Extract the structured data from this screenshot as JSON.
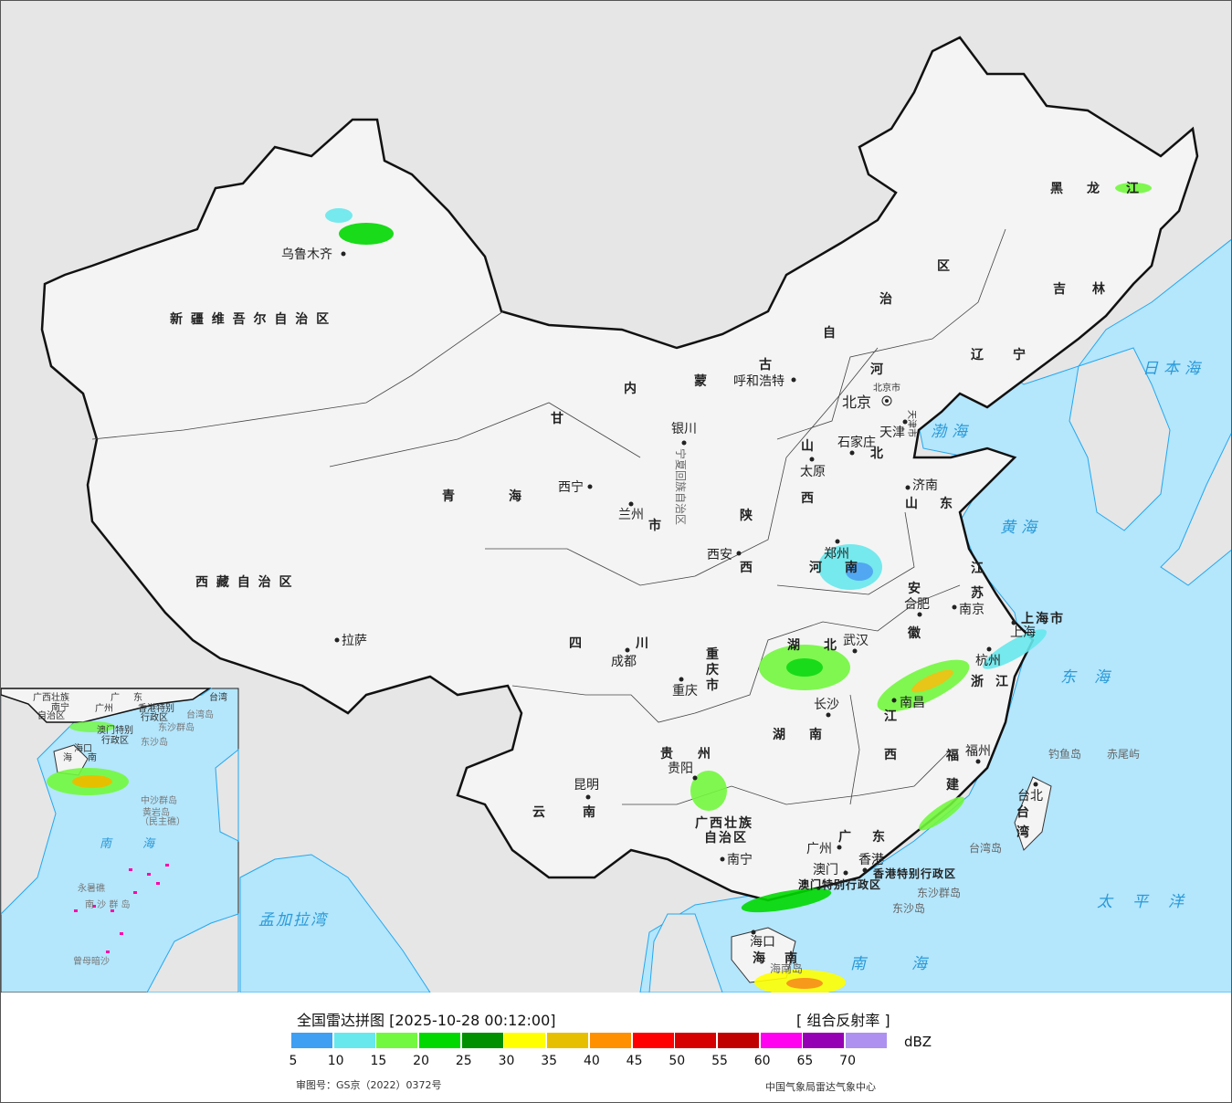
{
  "legend": {
    "title": "全国雷达拼图 [2025-10-28 00:12:00]",
    "product": "[ 组合反射率 ]",
    "unit": "dBZ",
    "colors": [
      "#3f9ff2",
      "#67e8ec",
      "#72f83e",
      "#00d800",
      "#009000",
      "#ffff00",
      "#e6c000",
      "#ff9000",
      "#ff0000",
      "#d60000",
      "#c00000",
      "#ff00f0",
      "#9600b4",
      "#ae90f0"
    ],
    "ticks": [
      "5",
      "10",
      "15",
      "20",
      "25",
      "30",
      "35",
      "40",
      "45",
      "50",
      "55",
      "60",
      "65",
      "70"
    ],
    "approval": "审图号：GS京（2022）0372号",
    "source": "中国气象局雷达气象中心"
  },
  "map": {
    "provinces": [
      "新 疆 维 吾 尔 自 治 区",
      "西 藏 自 治 区",
      "青",
      "海",
      "甘",
      "内",
      "蒙",
      "古",
      "自",
      "治",
      "区",
      "黑",
      "龙",
      "江",
      "吉",
      "林",
      "辽",
      "宁",
      "河",
      "北",
      "山",
      "西",
      "陕",
      "西",
      "河",
      "南",
      "山",
      "东",
      "江",
      "苏",
      "安",
      "徽",
      "湖",
      "北",
      "四",
      "川",
      "重",
      "庆",
      "市",
      "湖",
      "南",
      "江",
      "西",
      "浙",
      "江",
      "福",
      "建",
      "贵",
      "州",
      "云",
      "南",
      "广西壮族",
      "自治区",
      "广",
      "东",
      "台",
      "湾",
      "海",
      "南",
      "上海市",
      "市"
    ],
    "ningxia": "宁夏回族自治区",
    "beijing_city": "北京市",
    "tianjin_city": "天津市",
    "cities": [
      "乌鲁木齐",
      "拉萨",
      "西宁",
      "兰州",
      "银川",
      "呼和浩特",
      "北京",
      "天津",
      "石家庄",
      "太原",
      "济南",
      "郑州",
      "西安",
      "合肥",
      "南京",
      "上海",
      "杭州",
      "武汉",
      "成都",
      "重庆",
      "长沙",
      "南昌",
      "福州",
      "贵阳",
      "昆明",
      "南宁",
      "广州",
      "香港",
      "澳门",
      "台北",
      "海口"
    ],
    "sar": [
      "香港特别行政区",
      "澳门特别行政区"
    ],
    "islands": [
      "钓鱼岛",
      "赤尾屿",
      "台湾岛",
      "东沙群岛",
      "东沙岛",
      "海南岛"
    ],
    "seas": [
      "日本海",
      "渤海",
      "黄海",
      "东海",
      "太平洋",
      "南海",
      "孟加拉湾"
    ]
  },
  "inset": {
    "labels": [
      "广西壮族",
      "南宁",
      "自治区",
      "广",
      "东",
      "广州",
      "香港特别",
      "行政区",
      "澳门特别",
      "行政区",
      "台湾",
      "海口",
      "海",
      "南",
      "南",
      "海"
    ],
    "islands": [
      "台湾岛",
      "东沙群岛",
      "东沙岛",
      "中沙群岛",
      "黄岩岛",
      "（民主礁）",
      "永暑礁",
      "南 沙 群 岛",
      "曾母暗沙"
    ]
  }
}
